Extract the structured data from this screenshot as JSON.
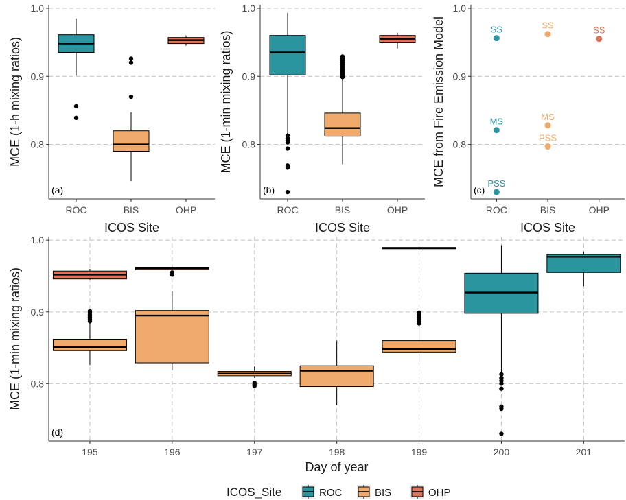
{
  "colors": {
    "ROC": "#2a949f",
    "BIS": "#f0ab6c",
    "OHP": "#d9735a",
    "grid": "#c8c8c8",
    "axis": "#333333",
    "outlier": "#000000"
  },
  "legend": {
    "title": "ICOS_Site",
    "items": [
      {
        "label": "ROC",
        "color": "#2a949f"
      },
      {
        "label": "BIS",
        "color": "#f0ab6c"
      },
      {
        "label": "OHP",
        "color": "#d9735a"
      }
    ]
  },
  "chart_data": [
    {
      "id": "a",
      "type": "box",
      "panel_label": "(a)",
      "xlabel": "ICOS Site",
      "ylabel": "MCE (1-h mixing ratios)",
      "ylim": [
        0.72,
        1.005
      ],
      "y_ticks": [
        "0.8",
        "0.9",
        "1.0"
      ],
      "y_tick_values": [
        0.8,
        0.9,
        1.0
      ],
      "categories": [
        "ROC",
        "BIS",
        "OHP"
      ],
      "grid": "horizontal dashed",
      "boxes": [
        {
          "site": "ROC",
          "min": 0.901,
          "q1": 0.935,
          "median": 0.948,
          "q3": 0.961,
          "max": 0.985,
          "outliers": [
            0.856,
            0.839
          ]
        },
        {
          "site": "BIS",
          "min": 0.746,
          "q1": 0.79,
          "median": 0.8,
          "q3": 0.82,
          "max": 0.847,
          "outliers": [
            0.926,
            0.92,
            0.87
          ]
        },
        {
          "site": "OHP",
          "min": 0.945,
          "q1": 0.948,
          "median": 0.953,
          "q3": 0.957,
          "max": 0.96,
          "outliers": []
        }
      ]
    },
    {
      "id": "b",
      "type": "box",
      "panel_label": "(b)",
      "xlabel": "ICOS Site",
      "ylabel": "MCE (1-min mixing ratios)",
      "ylim": [
        0.72,
        1.005
      ],
      "y_ticks": [
        "0.8",
        "0.9",
        "1.0"
      ],
      "y_tick_values": [
        0.8,
        0.9,
        1.0
      ],
      "categories": [
        "ROC",
        "BIS",
        "OHP"
      ],
      "grid": "horizontal dashed",
      "boxes": [
        {
          "site": "ROC",
          "min": 0.815,
          "q1": 0.902,
          "median": 0.935,
          "q3": 0.96,
          "max": 0.993,
          "outliers": [
            0.813,
            0.809,
            0.806,
            0.803,
            0.794,
            0.769,
            0.766,
            0.73
          ]
        },
        {
          "site": "BIS",
          "min": 0.771,
          "q1": 0.812,
          "median": 0.824,
          "q3": 0.846,
          "max": 0.897,
          "outliers": [
            0.899,
            0.902,
            0.905,
            0.908,
            0.911,
            0.914,
            0.917,
            0.92,
            0.923,
            0.926,
            0.929
          ]
        },
        {
          "site": "OHP",
          "min": 0.941,
          "q1": 0.95,
          "median": 0.955,
          "q3": 0.96,
          "max": 0.964,
          "outliers": []
        }
      ]
    },
    {
      "id": "c",
      "type": "scatter",
      "panel_label": "(c)",
      "xlabel": "ICOS Site",
      "ylabel": "MCE from Fire Emission Model",
      "ylim": [
        0.72,
        1.005
      ],
      "y_ticks": [
        "0.8",
        "0.9",
        "1.0"
      ],
      "y_tick_values": [
        0.8,
        0.9,
        1.0
      ],
      "categories": [
        "ROC",
        "BIS",
        "OHP"
      ],
      "grid": "horizontal dashed",
      "points": [
        {
          "site": "ROC",
          "label": "SS",
          "y": 0.956
        },
        {
          "site": "ROC",
          "label": "MS",
          "y": 0.821
        },
        {
          "site": "ROC",
          "label": "PSS",
          "y": 0.73
        },
        {
          "site": "BIS",
          "label": "SS",
          "y": 0.962
        },
        {
          "site": "BIS",
          "label": "MS",
          "y": 0.828
        },
        {
          "site": "BIS",
          "label": "PSS",
          "y": 0.797
        },
        {
          "site": "OHP",
          "label": "SS",
          "y": 0.955
        }
      ]
    },
    {
      "id": "d",
      "type": "box",
      "panel_label": "(d)",
      "xlabel": "Day of year",
      "ylabel": "MCE (1-min mixing ratios)",
      "ylim": [
        0.72,
        1.005
      ],
      "y_ticks": [
        "0.8",
        "0.9",
        "1.0"
      ],
      "y_tick_values": [
        0.8,
        0.9,
        1.0
      ],
      "categories": [
        "195",
        "196",
        "197",
        "198",
        "199",
        "200",
        "201"
      ],
      "grid": "horizontal and vertical dashed",
      "boxes": [
        {
          "day": "195",
          "site": "OHP",
          "min": 0.945,
          "q1": 0.946,
          "median": 0.952,
          "q3": 0.957,
          "max": 0.96,
          "outliers": []
        },
        {
          "day": "195",
          "site": "BIS",
          "min": 0.826,
          "q1": 0.846,
          "median": 0.851,
          "q3": 0.862,
          "max": 0.885,
          "outliers": [
            0.887,
            0.89,
            0.893,
            0.896,
            0.899,
            0.901
          ]
        },
        {
          "day": "196",
          "site": "OHP",
          "min": 0.958,
          "q1": 0.959,
          "median": 0.961,
          "q3": 0.962,
          "max": 0.963,
          "outliers": [
            0.955,
            0.952
          ]
        },
        {
          "day": "196",
          "site": "BIS",
          "min": 0.819,
          "q1": 0.829,
          "median": 0.895,
          "q3": 0.902,
          "max": 0.929,
          "outliers": []
        },
        {
          "day": "197",
          "site": "BIS",
          "min": 0.808,
          "q1": 0.811,
          "median": 0.814,
          "q3": 0.817,
          "max": 0.824,
          "outliers": [
            0.801,
            0.799,
            0.797
          ]
        },
        {
          "day": "198",
          "site": "BIS",
          "min": 0.77,
          "q1": 0.796,
          "median": 0.818,
          "q3": 0.825,
          "max": 0.86,
          "outliers": []
        },
        {
          "day": "199",
          "site": "ROC",
          "min": 0.987,
          "q1": 0.988,
          "median": 0.989,
          "q3": 0.99,
          "max": 0.991,
          "outliers": []
        },
        {
          "day": "199",
          "site": "BIS",
          "min": 0.83,
          "q1": 0.844,
          "median": 0.848,
          "q3": 0.86,
          "max": 0.882,
          "outliers": [
            0.884,
            0.887,
            0.89,
            0.893,
            0.896,
            0.899
          ]
        },
        {
          "day": "200",
          "site": "ROC",
          "min": 0.815,
          "q1": 0.898,
          "median": 0.927,
          "q3": 0.954,
          "max": 0.993,
          "outliers": [
            0.813,
            0.808,
            0.804,
            0.8,
            0.793,
            0.768,
            0.765,
            0.73
          ]
        },
        {
          "day": "201",
          "site": "ROC",
          "min": 0.936,
          "q1": 0.955,
          "median": 0.977,
          "q3": 0.98,
          "max": 0.984,
          "outliers": []
        }
      ]
    }
  ]
}
